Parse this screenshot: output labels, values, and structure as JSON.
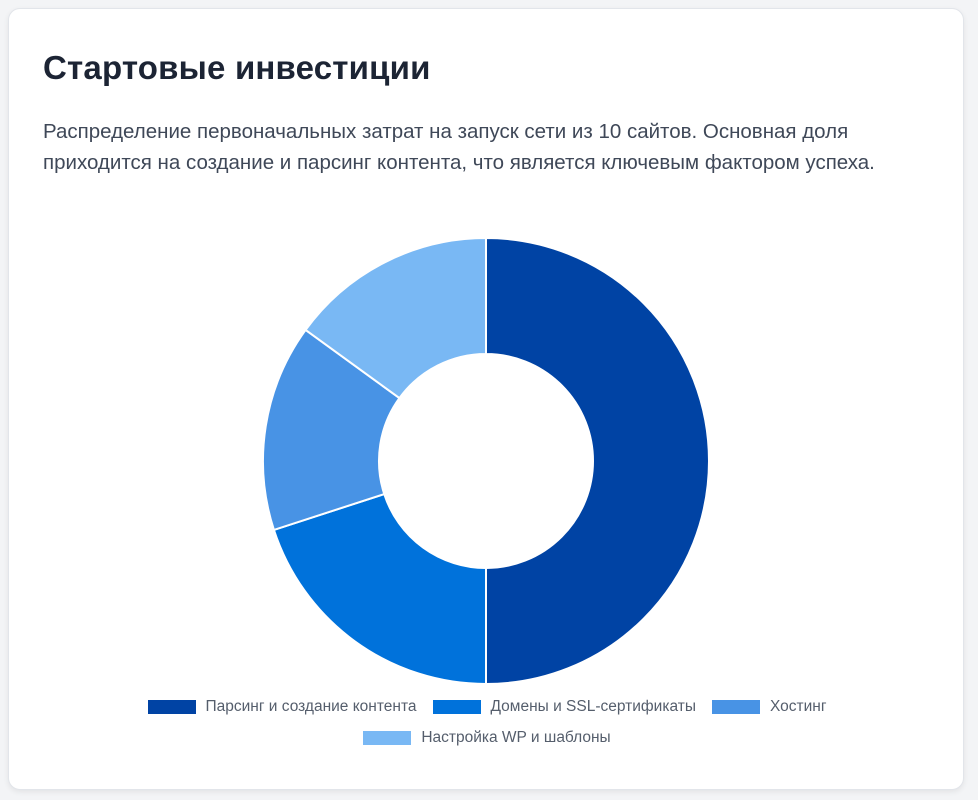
{
  "card": {
    "title": "Стартовые инвестиции",
    "description": "Распределение первоначальных затрат на запуск сети из 10 сайтов. Основная доля приходится на создание и парсинг контента, что является ключевым фактором успеха."
  },
  "chart_data": {
    "type": "pie",
    "variant": "doughnut",
    "categories": [
      "Парсинг и создание контента",
      "Домены и SSL-сертификаты",
      "Хостинг",
      "Настройка WP и шаблоны"
    ],
    "values": [
      50,
      20,
      15,
      15
    ],
    "colors": [
      "#0043a4",
      "#0072db",
      "#4893e5",
      "#79b8f4"
    ],
    "legend_position": "bottom"
  }
}
